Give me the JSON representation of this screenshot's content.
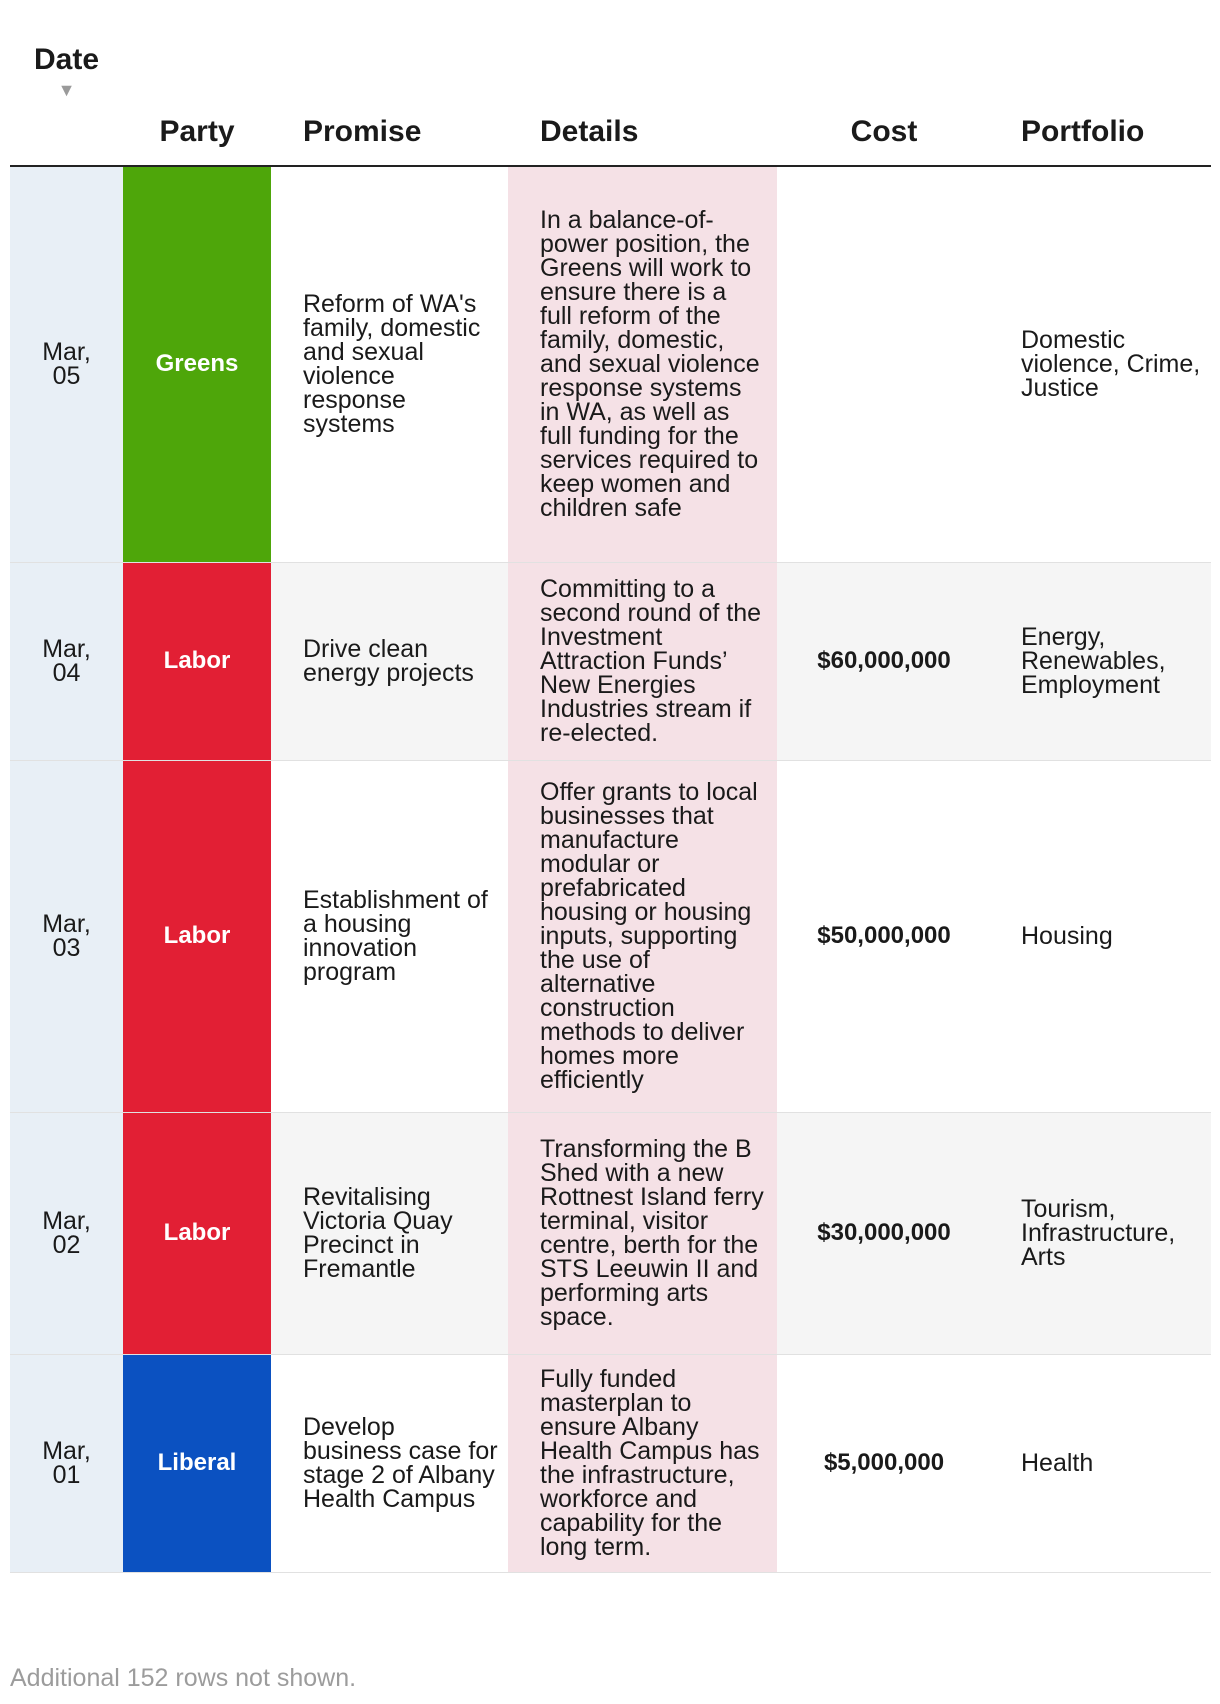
{
  "table": {
    "headers": {
      "date": "Date",
      "party": "Party",
      "promise": "Promise",
      "details": "Details",
      "cost": "Cost",
      "portfolio": "Portfolio"
    },
    "sort_indicator": "▼",
    "rows": [
      {
        "date": "Mar, 05",
        "party": "Greens",
        "party_color": "#4ea60a",
        "promise": "Reform of WA's family, domestic and sexual violence response systems",
        "details": "In a balance-of-power position, the Greens will work to ensure there is a full reform of the family, domestic, and sexual violence response systems in WA, as well as full funding for the services required to keep women and children safe",
        "cost": "",
        "portfolio": "Domestic violence, Crime, Justice"
      },
      {
        "date": "Mar, 04",
        "party": "Labor",
        "party_color": "#e21f34",
        "promise": "Drive clean energy projects",
        "details": "Committing to a second round of the Investment Attraction Funds’ New Energies Industries stream if re-elected.",
        "cost": "$60,000,000",
        "portfolio": "Energy, Renewables, Employment"
      },
      {
        "date": "Mar, 03",
        "party": "Labor",
        "party_color": "#e21f34",
        "promise": "Establishment of a housing innovation program",
        "details": "Offer grants to local businesses that manufacture modular or prefabricated housing or housing inputs, supporting the use of alternative construction methods to deliver homes more efficiently",
        "cost": "$50,000,000",
        "portfolio": "Housing"
      },
      {
        "date": "Mar, 02",
        "party": "Labor",
        "party_color": "#e21f34",
        "promise": "Revitalising Victoria Quay Precinct in Fremantle",
        "details": "Transforming the B Shed with a new Rottnest Island ferry terminal, visitor centre, berth for the STS Leeuwin II and performing arts space.",
        "cost": "$30,000,000",
        "portfolio": "Tourism, Infrastructure, Arts"
      },
      {
        "date": "Mar, 01",
        "party": "Liberal",
        "party_color": "#0b51c1",
        "promise": "Develop business case for stage 2 of Albany Health Campus",
        "details": "Fully funded masterplan to ensure Albany Health Campus has the infrastructure, workforce and capability for the long term.",
        "cost": "$5,000,000",
        "portfolio": "Health"
      }
    ]
  },
  "footer": "Additional 152 rows not shown."
}
